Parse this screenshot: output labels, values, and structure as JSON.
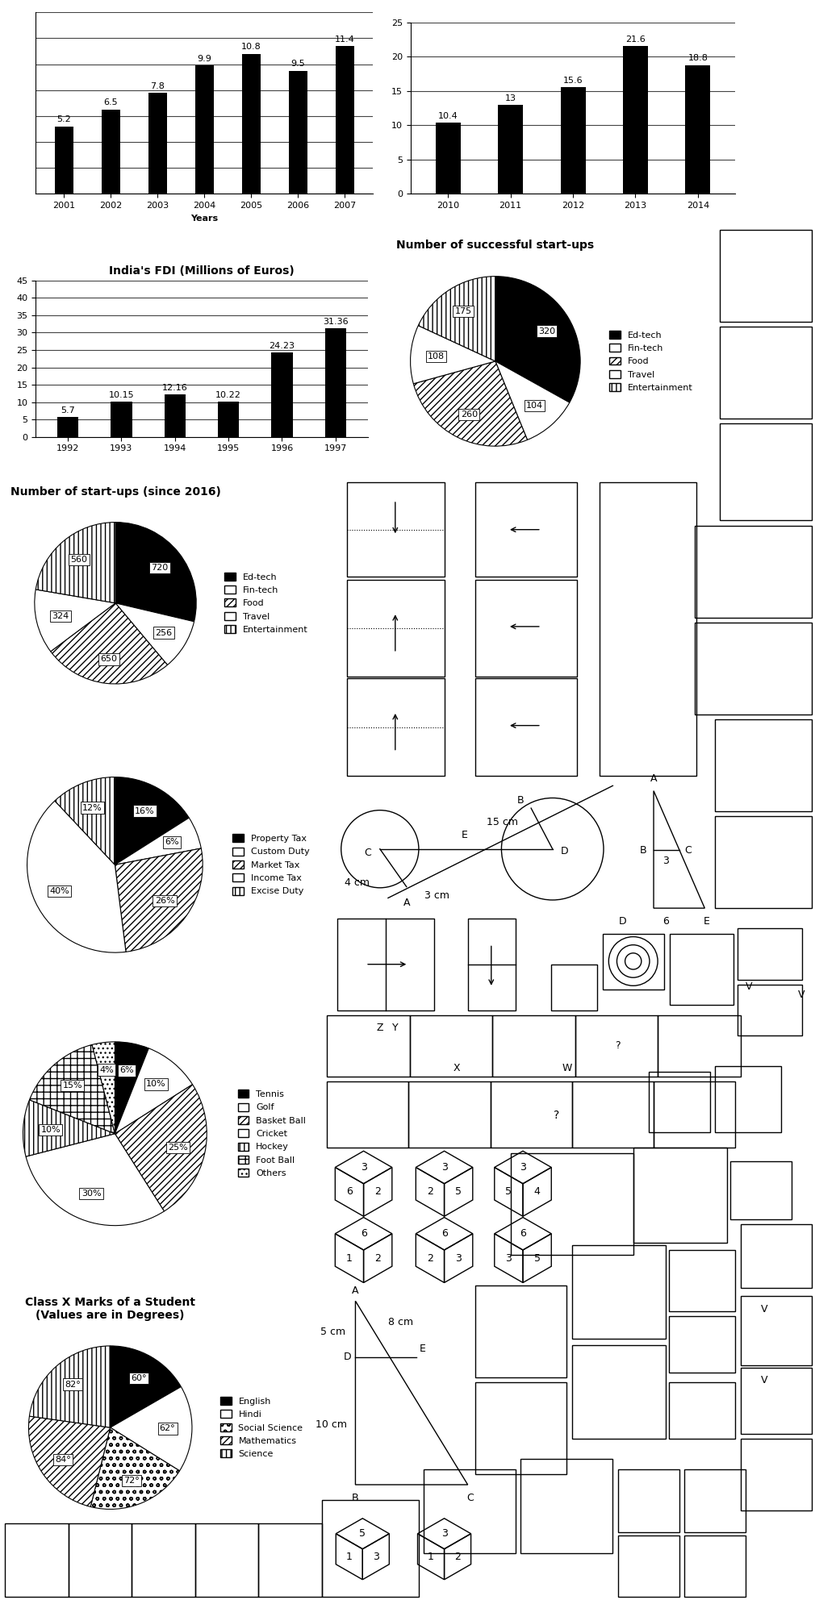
{
  "chart_data": [
    {
      "type": "bar",
      "categories": [
        "2001",
        "2002",
        "2003",
        "2004",
        "2005",
        "2006",
        "2007"
      ],
      "values": [
        5.2,
        6.5,
        7.8,
        9.9,
        10.8,
        9.5,
        11.4
      ],
      "color": "#000000",
      "x_label": "Years",
      "ylim": [
        0,
        14
      ],
      "yticks": [
        0,
        2,
        4,
        6,
        8,
        10,
        12,
        14
      ],
      "grid": true,
      "data_labels": true,
      "tick_labels": "x"
    },
    {
      "type": "bar",
      "categories": [
        "2010",
        "2011",
        "2012",
        "2013",
        "2014"
      ],
      "values": [
        10.4,
        13,
        15.6,
        21.6,
        18.8
      ],
      "color": "#000000",
      "ylim": [
        0,
        25
      ],
      "yticks": [
        0,
        5,
        10,
        15,
        20,
        25
      ],
      "grid": true,
      "data_labels": true
    },
    {
      "type": "bar",
      "title": "India's FDI (Millions of Euros)",
      "categories": [
        "1992",
        "1993",
        "1994",
        "1995",
        "1996",
        "1997"
      ],
      "values": [
        5.7,
        10.15,
        12.16,
        10.22,
        24.23,
        31.36
      ],
      "color": "#000000",
      "ylim": [
        0,
        45
      ],
      "yticks": [
        0,
        5,
        10,
        15,
        20,
        25,
        30,
        35,
        40,
        45
      ],
      "grid": true,
      "data_labels": true
    },
    {
      "type": "pie",
      "title": "Number of successful start-ups",
      "categories": [
        "Ed-tech",
        "Fin-tech",
        "Food",
        "Travel",
        "Entertainment"
      ],
      "values": [
        320,
        104,
        260,
        108,
        175
      ],
      "colors": [
        "#000000",
        "#ffffff",
        "#ffffff",
        "#ffffff",
        "#ffffff"
      ],
      "legend": "right",
      "data_labels": true
    },
    {
      "type": "pie",
      "title": "Number of start-ups (since 2016)",
      "categories": [
        "Ed-tech",
        "Fin-tech",
        "Food",
        "Travel",
        "Entertainment"
      ],
      "values": [
        720,
        256,
        650,
        324,
        560
      ],
      "colors": [
        "#000000",
        "#ffffff",
        "#ffffff",
        "#ffffff",
        "#ffffff"
      ],
      "legend": "right",
      "data_labels": true
    },
    {
      "type": "pie",
      "categories": [
        "Property Tax",
        "Custom Duty",
        "Market Tax",
        "Income Tax",
        "Excise Duty"
      ],
      "values": [
        16,
        6,
        26,
        40,
        12
      ],
      "value_labels": [
        "16%",
        "6%",
        "26%",
        "40%",
        "12%"
      ],
      "colors": [
        "#000000",
        "#ffffff",
        "#ffffff",
        "#ffffff",
        "#ffffff"
      ],
      "legend": "right",
      "data_labels": true
    },
    {
      "type": "pie",
      "categories": [
        "Tennis",
        "Golf",
        "Basket Ball",
        "Cricket",
        "Hockey",
        "Foot Ball",
        "Others"
      ],
      "values": [
        6,
        10,
        25,
        30,
        10,
        15,
        4
      ],
      "value_labels": [
        "6%",
        "10%",
        "25%",
        "30%",
        "10%",
        "15%",
        "4%"
      ],
      "colors": [
        "#000000",
        "#ffffff",
        "#ffffff",
        "#ffffff",
        "#ffffff",
        "#ffffff",
        "#ffffff"
      ],
      "legend": "right",
      "data_labels": true
    },
    {
      "type": "pie",
      "title": "Class X Marks of a Student\n(Values are in Degrees)",
      "categories": [
        "English",
        "Hindi",
        "Social Science",
        "Mathematics",
        "Science"
      ],
      "values": [
        60,
        62,
        72,
        84,
        82
      ],
      "value_labels": [
        "60°",
        "62°",
        "72°",
        "84°",
        "82°"
      ],
      "colors": [
        "#000000",
        "#ffffff",
        "#ffffff",
        "#ffffff",
        "#ffffff"
      ],
      "legend": "right",
      "data_labels": true
    }
  ],
  "diagrams": {
    "circle_tangent": [
      "C",
      "4 cm",
      "A",
      "3 cm",
      "E",
      "15 cm",
      "B",
      "D"
    ],
    "triangle_1": [
      "A",
      "B",
      "3",
      "C",
      "D",
      "6",
      "E"
    ],
    "triangle_2": [
      "A",
      "5 cm",
      "8 cm",
      "D",
      "E",
      "10 cm",
      "B",
      "C"
    ],
    "figure_series_1": [
      "Z",
      "Y",
      "X",
      "W",
      "?"
    ],
    "figure_series_2": [
      "?"
    ],
    "v_marks": [
      "V",
      "V",
      "V",
      "V"
    ],
    "dice": [
      [
        3,
        6,
        2
      ],
      [
        3,
        2,
        5
      ],
      [
        3,
        5,
        4
      ],
      [
        6,
        1,
        2
      ],
      [
        6,
        2,
        3
      ],
      [
        6,
        3,
        5
      ],
      [
        5,
        1,
        3
      ],
      [
        3,
        1,
        2
      ]
    ]
  }
}
